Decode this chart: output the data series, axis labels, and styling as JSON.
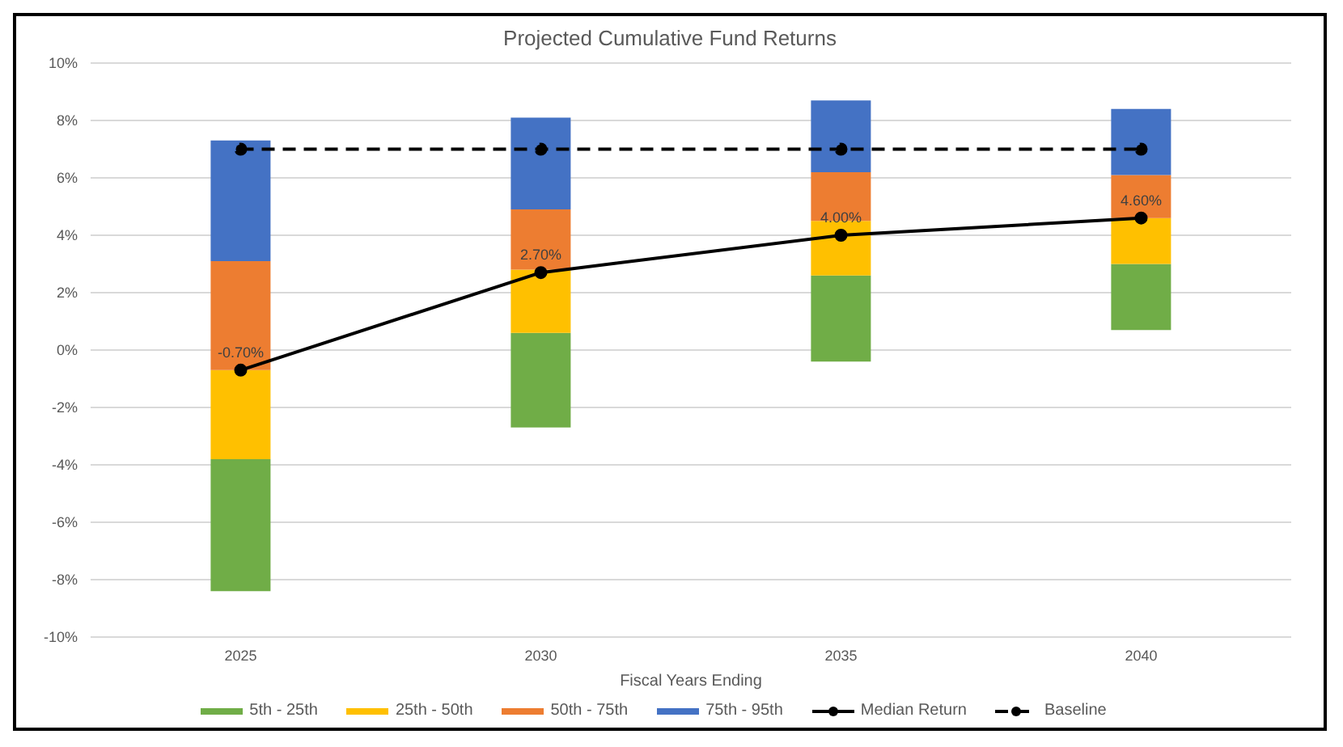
{
  "chart_data": {
    "type": "bar",
    "title": "Projected Cumulative Fund Returns",
    "xlabel": "Fiscal Years Ending",
    "categories": [
      "2025",
      "2030",
      "2035",
      "2040"
    ],
    "series": [
      {
        "name": "5th - 25th",
        "color": "#70ad47",
        "base": [
          -8.4,
          -2.7,
          -0.4,
          0.7
        ],
        "values": [
          4.6,
          3.3,
          3.0,
          2.3
        ]
      },
      {
        "name": "25th - 50th",
        "color": "#ffc000",
        "base": [
          -3.8,
          0.6,
          2.6,
          3.0
        ],
        "values": [
          3.1,
          2.2,
          1.9,
          1.6
        ]
      },
      {
        "name": "50th - 75th",
        "color": "#ed7d31",
        "base": [
          -0.7,
          2.8,
          4.5,
          4.6
        ],
        "values": [
          3.8,
          2.1,
          1.7,
          1.5
        ]
      },
      {
        "name": "75th - 95th",
        "color": "#4472c4",
        "base": [
          3.1,
          4.9,
          6.2,
          6.1
        ],
        "values": [
          4.2,
          3.2,
          2.5,
          2.3
        ]
      },
      {
        "name": "Median Return",
        "type": "line",
        "color": "#000000",
        "values": [
          -0.7,
          2.7,
          4.0,
          4.6
        ],
        "marker": "circle",
        "line_style": "solid",
        "value_labels": [
          "-0.70%",
          "2.70%",
          "4.00%",
          "4.60%"
        ]
      },
      {
        "name": "Baseline",
        "type": "line",
        "color": "#000000",
        "values": [
          7.0,
          7.0,
          7.0,
          7.0
        ],
        "marker": "circle",
        "line_style": "dashed"
      }
    ],
    "ylim": [
      -10,
      10
    ],
    "yticks": [
      {
        "value": -10,
        "label": "-10%"
      },
      {
        "value": -8,
        "label": "-8%"
      },
      {
        "value": -6,
        "label": "-6%"
      },
      {
        "value": -4,
        "label": "-4%"
      },
      {
        "value": -2,
        "label": "-2%"
      },
      {
        "value": 0,
        "label": "0%"
      },
      {
        "value": 2,
        "label": "2%"
      },
      {
        "value": 4,
        "label": "4%"
      },
      {
        "value": 6,
        "label": "6%"
      },
      {
        "value": 8,
        "label": "8%"
      },
      {
        "value": 10,
        "label": "10%"
      }
    ],
    "grid": "y",
    "legend": "bottom"
  }
}
